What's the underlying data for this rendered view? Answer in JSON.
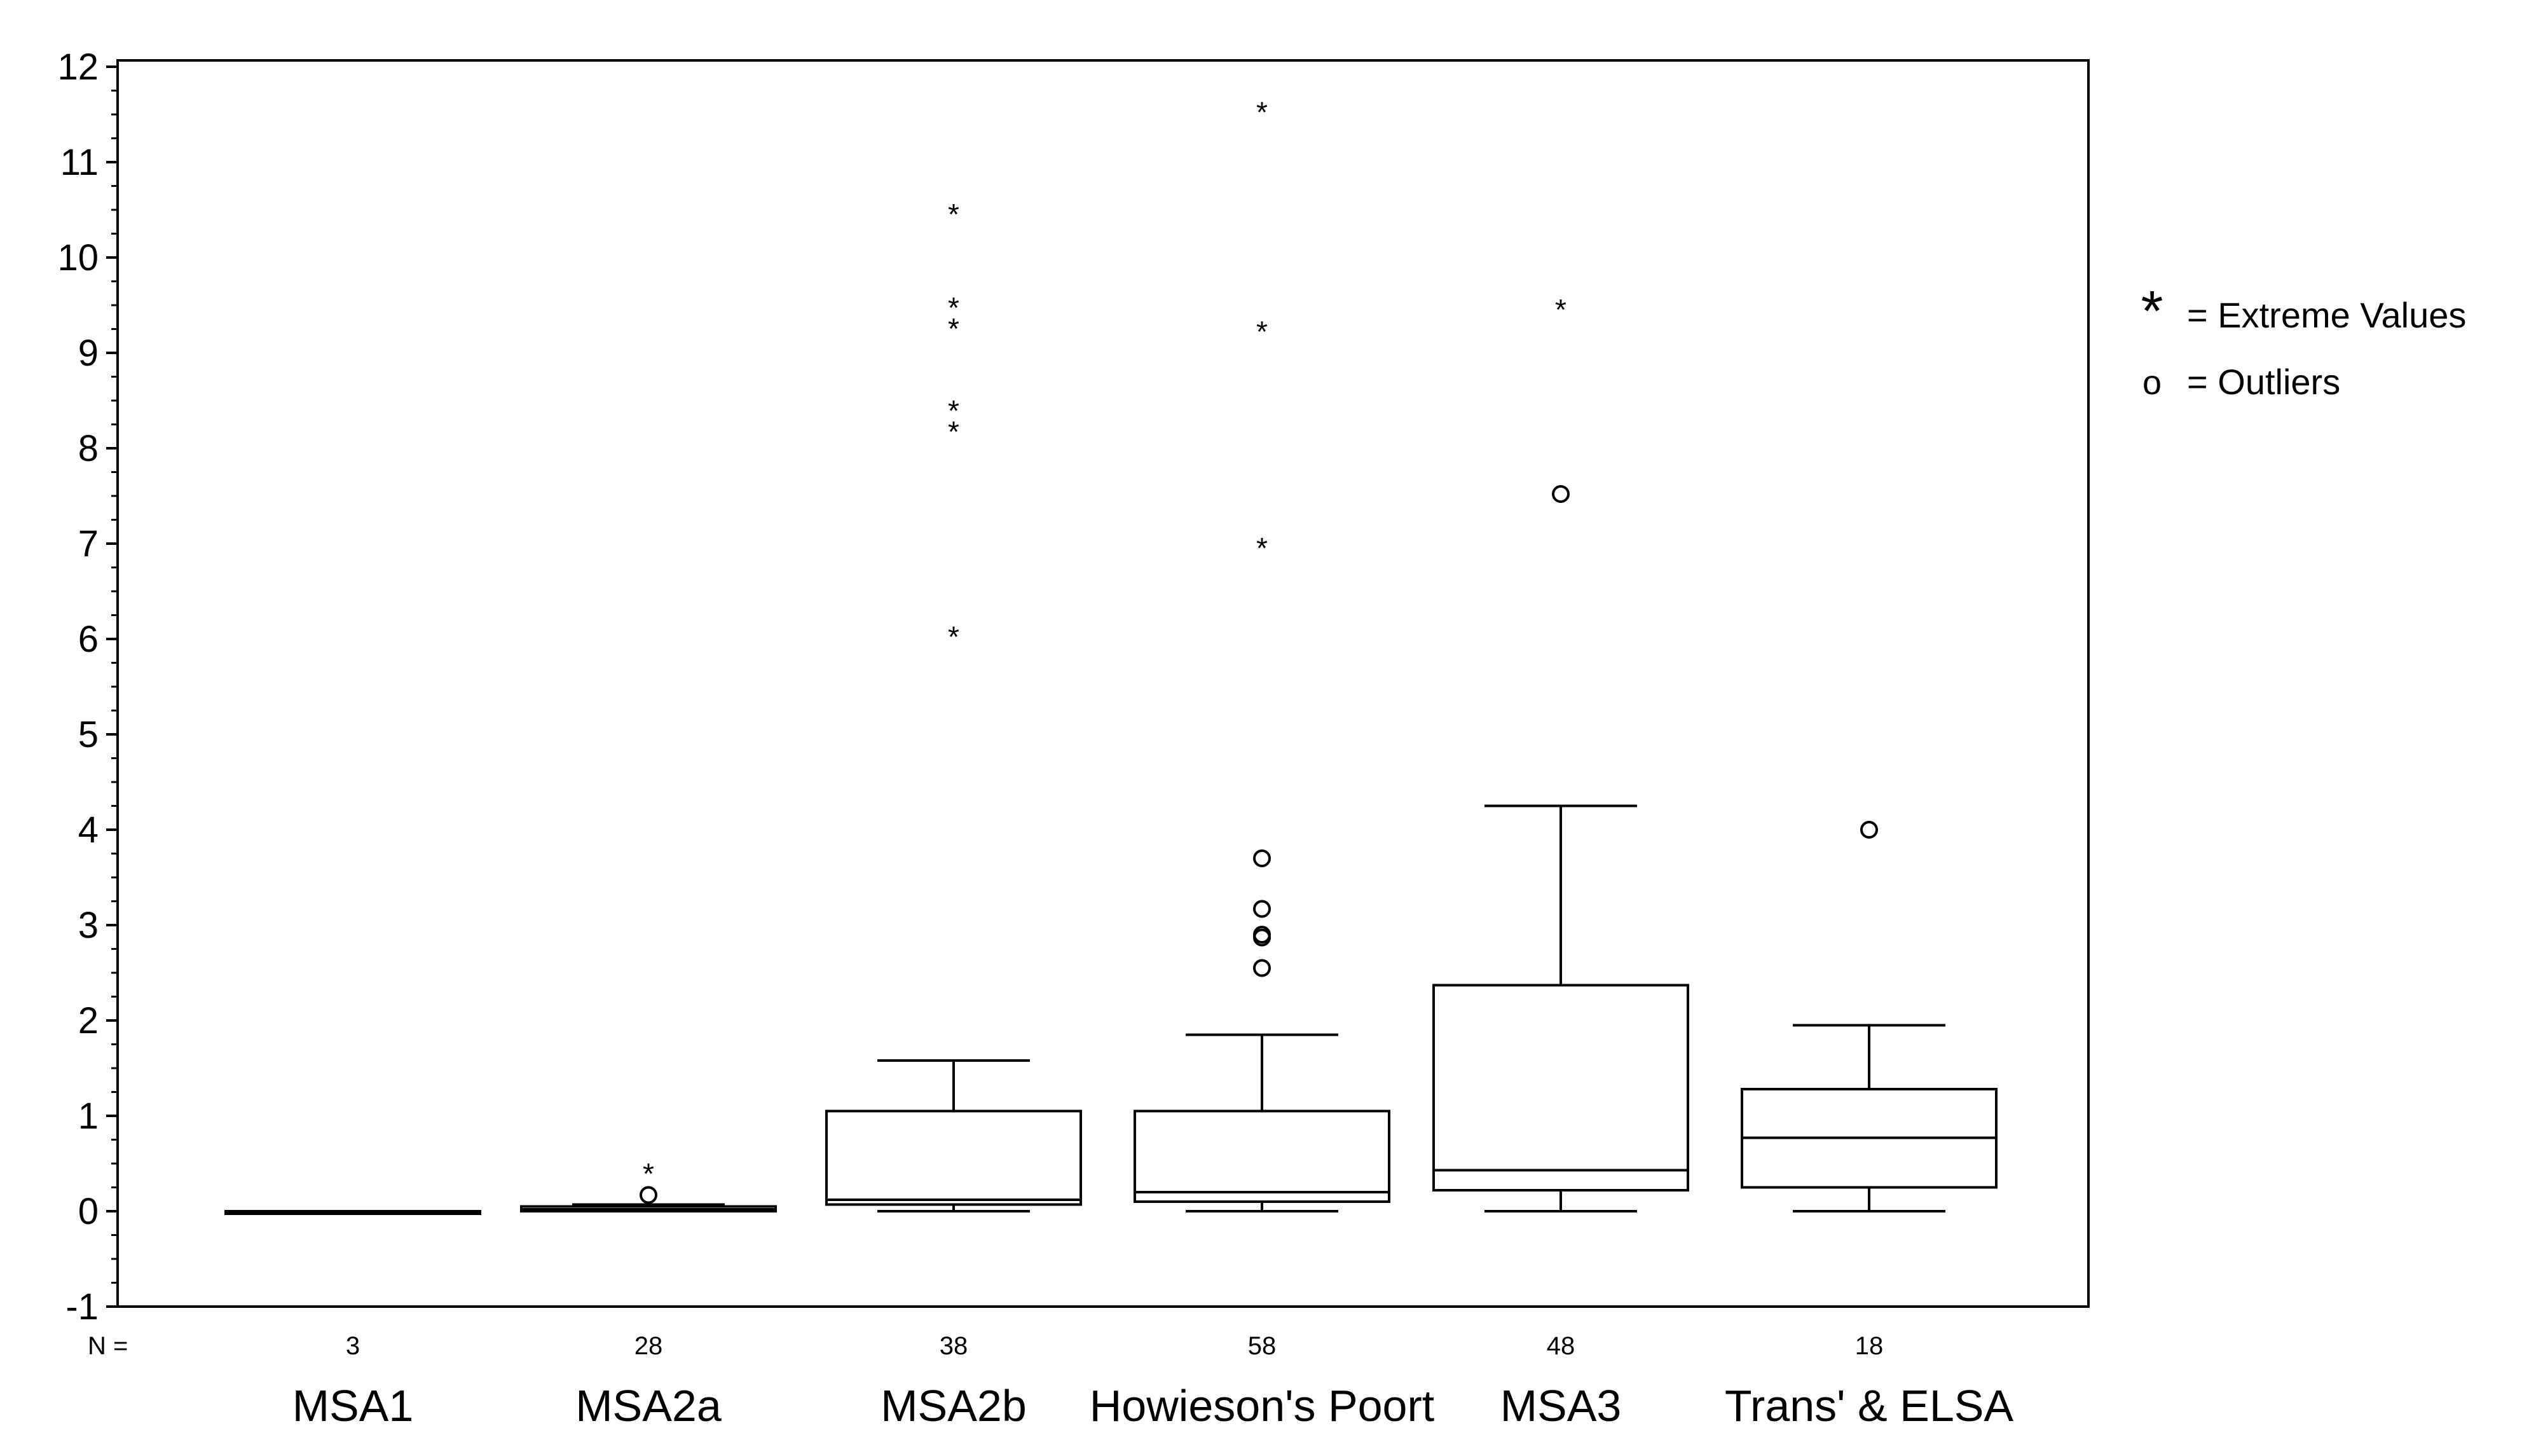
{
  "chart_data": {
    "type": "boxplot",
    "title": "",
    "xlabel": "",
    "ylabel": "",
    "ylim": [
      -1,
      12
    ],
    "yticks": [
      -1,
      0,
      1,
      2,
      3,
      4,
      5,
      6,
      7,
      8,
      9,
      10,
      11,
      12
    ],
    "n_prefix": "N =",
    "groups": [
      {
        "name": "MSA1",
        "n": "3",
        "min": 0,
        "q1": 0,
        "median": 0,
        "q3": 0,
        "max": 0,
        "outliers": [],
        "extremes": []
      },
      {
        "name": "MSA2a",
        "n": "28",
        "min": 0,
        "q1": 0.0,
        "median": 0.02,
        "q3": 0.05,
        "max": 0.07,
        "outliers": [
          0.17
        ],
        "extremes": [
          0.42
        ]
      },
      {
        "name": "MSA2b",
        "n": "38",
        "min": 0,
        "q1": 0.07,
        "median": 0.12,
        "q3": 1.05,
        "max": 1.58,
        "outliers": [],
        "extremes": [
          6.05,
          8.2,
          8.42,
          9.28,
          9.5,
          10.48
        ]
      },
      {
        "name": "Howieson's Poort",
        "n": "58",
        "min": 0,
        "q1": 0.1,
        "median": 0.2,
        "q3": 1.05,
        "max": 1.85,
        "outliers": [
          2.55,
          2.87,
          2.9,
          3.17,
          3.7
        ],
        "extremes": [
          6.98,
          9.25,
          11.55
        ]
      },
      {
        "name": "MSA3",
        "n": "48",
        "min": 0,
        "q1": 0.22,
        "median": 0.43,
        "q3": 2.37,
        "max": 4.25,
        "outliers": [
          7.52
        ],
        "extremes": [
          9.48
        ]
      },
      {
        "name": "Trans' & ELSA",
        "n": "18",
        "min": 0,
        "q1": 0.25,
        "median": 0.77,
        "q3": 1.28,
        "max": 1.95,
        "outliers": [
          4.0
        ],
        "extremes": []
      }
    ],
    "legend": {
      "position": "right",
      "items": [
        {
          "symbol": "*",
          "label": "= Extreme Values"
        },
        {
          "symbol": "o",
          "label": "= Outliers"
        }
      ]
    }
  }
}
